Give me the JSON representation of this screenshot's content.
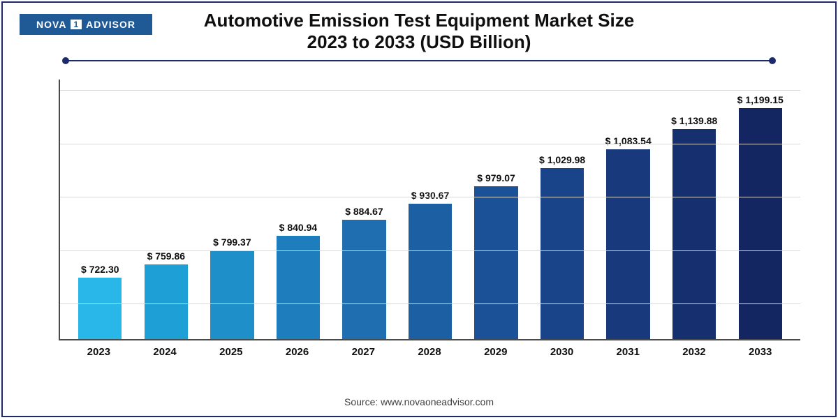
{
  "logo": {
    "left": "NOVA",
    "mid": "1",
    "right": "ADVISOR"
  },
  "title_line1": "Automotive Emission Test Equipment Market Size",
  "title_line2": "2023 to 2033 (USD Billion)",
  "source": "Source: www.novaoneadvisor.com",
  "chart": {
    "type": "bar",
    "ylim": [
      550,
      1280
    ],
    "gridlines": [
      650,
      800,
      950,
      1100,
      1250
    ],
    "background_color": "#ffffff",
    "grid_color": "#d9d9d9",
    "axis_color": "#4a4a4a",
    "label_fontsize": 14,
    "xaxis_fontsize": 15,
    "bar_width_pct": 66,
    "categories": [
      "2023",
      "2024",
      "2025",
      "2026",
      "2027",
      "2028",
      "2029",
      "2030",
      "2031",
      "2032",
      "2033"
    ],
    "values": [
      722.3,
      759.86,
      799.37,
      840.94,
      884.67,
      930.67,
      979.07,
      1029.98,
      1083.54,
      1139.88,
      1199.15
    ],
    "value_labels": [
      "$ 722.30",
      "$ 759.86",
      "$ 799.37",
      "$ 840.94",
      "$ 884.67",
      "$ 930.67",
      "$ 979.07",
      "$ 1,029.98",
      "$ 1,083.54",
      "$ 1,139.88",
      "$ 1,199.15"
    ],
    "bar_colors": [
      "#29b6e8",
      "#1ea0d6",
      "#1f8fc9",
      "#1e7ebd",
      "#1e6eb0",
      "#1d5fa3",
      "#1b5196",
      "#1a4489",
      "#18397c",
      "#162f6e",
      "#142661"
    ]
  }
}
